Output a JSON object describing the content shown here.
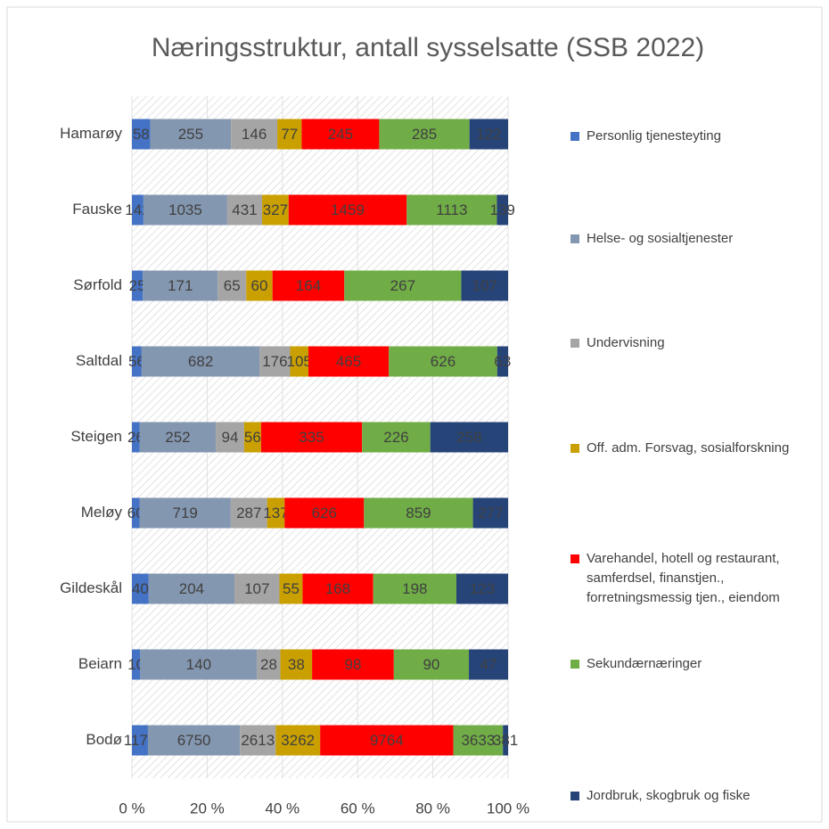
{
  "chart_data": {
    "type": "stacked_bar_100",
    "title": "Næringsstruktur, antall sysselsatte (SSB 2022)",
    "categories": [
      "Hamarøy",
      "Fauske",
      "Sørfold",
      "Saltdal",
      "Steigen",
      "Meløy",
      "Gildeskål",
      "Beiarn",
      "Bodø"
    ],
    "series": [
      {
        "name": "Personlig tjenesteyting",
        "color": "#4472c4",
        "values": [
          58,
          142,
          25,
          56,
          26,
          60,
          40,
          10,
          1174
        ]
      },
      {
        "name": "Helse- og sosialtjenester",
        "color": "#8497b0",
        "values": [
          255,
          1035,
          171,
          682,
          252,
          719,
          204,
          140,
          6750
        ]
      },
      {
        "name": "Undervisning",
        "color": "#a5a5a5",
        "values": [
          146,
          431,
          65,
          176,
          94,
          287,
          107,
          28,
          2613
        ]
      },
      {
        "name": "Off. adm. Forsvag, sosialforskning",
        "color": "#c9a000",
        "values": [
          77,
          327,
          60,
          105,
          56,
          137,
          55,
          38,
          3262
        ]
      },
      {
        "name": "Varehandel, hotell og restaurant, samferdsel, finanstjen., forretningsmessig tjen., eiendom",
        "color": "#ff0000",
        "values": [
          245,
          1459,
          164,
          465,
          335,
          626,
          168,
          98,
          9764
        ]
      },
      {
        "name": "Sekundærnæringer",
        "color": "#70ad47",
        "values": [
          285,
          1113,
          267,
          626,
          226,
          859,
          198,
          90,
          3633
        ]
      },
      {
        "name": "Jordbruk, skogbruk og fiske",
        "color": "#264478",
        "values": [
          122,
          139,
          107,
          63,
          258,
          277,
          123,
          47,
          381
        ]
      }
    ],
    "xlim": [
      0,
      100
    ],
    "xticks": [
      {
        "value": 0,
        "label": "0 %"
      },
      {
        "value": 20,
        "label": "20 %"
      },
      {
        "value": 40,
        "label": "40 %"
      },
      {
        "value": 60,
        "label": "60 %"
      },
      {
        "value": 80,
        "label": "80 %"
      },
      {
        "value": 100,
        "label": "100 %"
      }
    ],
    "grid": true,
    "legend": "right"
  }
}
